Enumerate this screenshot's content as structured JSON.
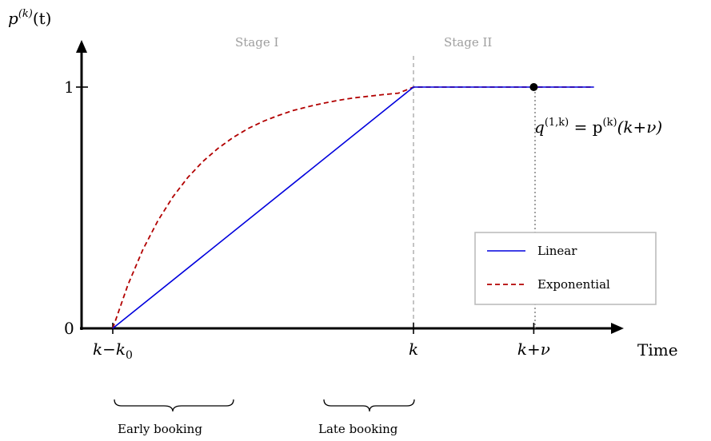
{
  "chart_data": {
    "type": "line",
    "y_axis_label": {
      "main": "p",
      "sup": "(k)",
      "arg": "(t)"
    },
    "x_axis_label": "Time",
    "y_ticks": [
      {
        "value": 0,
        "label": "0"
      },
      {
        "value": 1,
        "label": "1"
      }
    ],
    "x_ticks": [
      {
        "value": 0,
        "main": "k−k",
        "sub": "0"
      },
      {
        "value": 1,
        "main": "k",
        "sub": ""
      },
      {
        "value": 1.4,
        "main": "k+ν",
        "sub": ""
      }
    ],
    "x_range": [
      -0.1,
      1.68
    ],
    "y_range": [
      0,
      1.15
    ],
    "stages": {
      "stage1": "Stage I",
      "stage2": "Stage II"
    },
    "series": [
      {
        "name": "Linear",
        "color": "#0000dd",
        "dash": "solid",
        "x": [
          0,
          1,
          1.6
        ],
        "y": [
          0,
          1,
          1
        ]
      },
      {
        "name": "Exponential",
        "color": "#b20000",
        "dash": "dashed",
        "x": [
          0,
          0.05,
          0.1,
          0.15,
          0.2,
          0.25,
          0.3,
          0.35,
          0.4,
          0.45,
          0.5,
          0.55,
          0.6,
          0.65,
          0.7,
          0.75,
          0.8,
          0.85,
          0.9,
          0.95,
          1,
          1.6
        ],
        "y": [
          0,
          0.179,
          0.326,
          0.446,
          0.545,
          0.626,
          0.692,
          0.746,
          0.791,
          0.828,
          0.858,
          0.882,
          0.903,
          0.919,
          0.933,
          0.945,
          0.955,
          0.962,
          0.969,
          0.975,
          1,
          1
        ]
      }
    ],
    "marker": {
      "x": 1.4,
      "y": 1
    },
    "annotation": {
      "left": "q",
      "sup": "(1,k)",
      "right": " = p",
      "sup2": "(k)",
      "tail": "(k+ν)"
    },
    "legend": {
      "placement": "lower-right",
      "items": [
        "Linear",
        "Exponential"
      ]
    },
    "braces": [
      "Early booking",
      "Late booking"
    ],
    "grid": false
  }
}
